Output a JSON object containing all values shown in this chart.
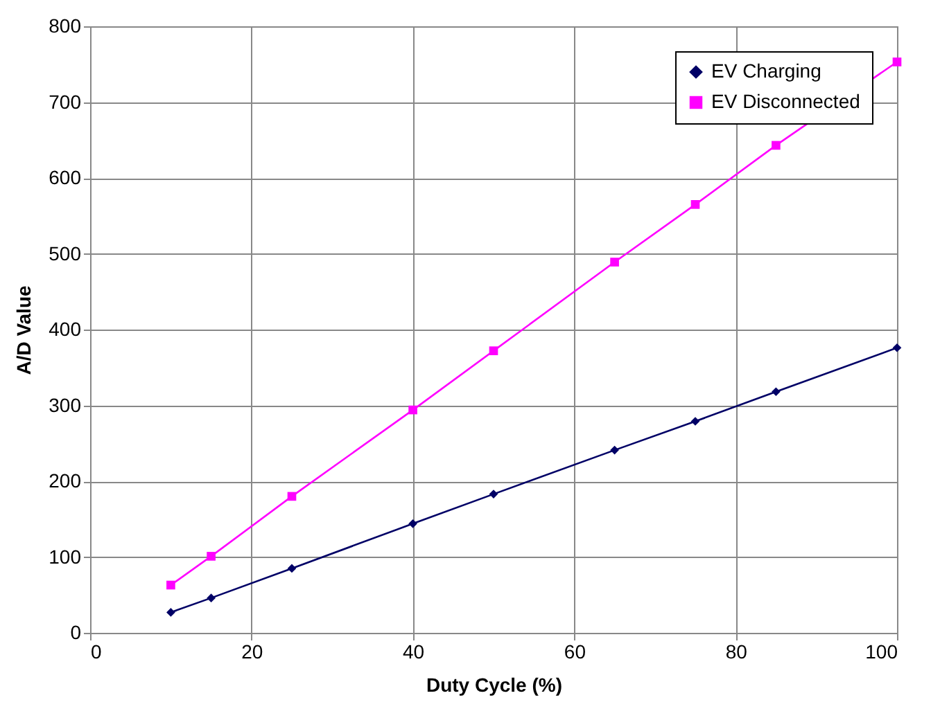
{
  "chart_data": {
    "type": "line",
    "xlabel": "Duty Cycle (%)",
    "ylabel": "A/D Value",
    "x": [
      10,
      15,
      25,
      40,
      50,
      65,
      75,
      85,
      100
    ],
    "series": [
      {
        "name": "EV Charging",
        "color": "#000066",
        "marker": "diamond",
        "values": [
          27,
          46,
          85,
          144,
          183,
          241,
          279,
          318,
          376
        ]
      },
      {
        "name": "EV Disconnected",
        "color": "#ff00ff",
        "marker": "square",
        "values": [
          63,
          101,
          180,
          294,
          372,
          489,
          565,
          643,
          753
        ]
      }
    ],
    "xlim": [
      0,
      100
    ],
    "xticks": [
      0,
      20,
      40,
      60,
      80,
      100
    ],
    "ylim": [
      0,
      800
    ],
    "yticks": [
      0,
      100,
      200,
      300,
      400,
      500,
      600,
      700,
      800
    ],
    "grid": true,
    "legend": "top right",
    "line_style": "solid"
  }
}
